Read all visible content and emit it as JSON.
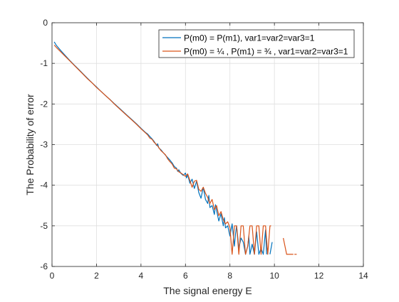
{
  "chart_data": {
    "type": "line",
    "title": "",
    "xlabel": "The signal energy E",
    "ylabel": "The Probability of error",
    "xlim": [
      0,
      14
    ],
    "ylim": [
      -6,
      0
    ],
    "xticks": [
      0,
      2,
      4,
      6,
      8,
      10,
      12,
      14
    ],
    "yticks": [
      0,
      -1,
      -2,
      -3,
      -4,
      -5,
      -6
    ],
    "xtick_labels": [
      "0",
      "2",
      "4",
      "6",
      "8",
      "10",
      "12",
      "14"
    ],
    "ytick_labels": [
      "0",
      "-1",
      "-2",
      "-3",
      "-4",
      "-5",
      "-6"
    ],
    "grid": true,
    "legend_position": "top-right",
    "series": [
      {
        "name": "P(m0) = P(m1), var1=var2=var3=1",
        "color": "#0072BD",
        "points": [
          [
            0.1,
            -0.47
          ],
          [
            0.2,
            -0.56
          ],
          [
            0.4,
            -0.69
          ],
          [
            0.6,
            -0.81
          ],
          [
            0.8,
            -0.93
          ],
          [
            1.0,
            -1.04
          ],
          [
            1.2,
            -1.15
          ],
          [
            1.4,
            -1.26
          ],
          [
            1.6,
            -1.37
          ],
          [
            1.8,
            -1.48
          ],
          [
            2.0,
            -1.58
          ],
          [
            2.2,
            -1.69
          ],
          [
            2.4,
            -1.79
          ],
          [
            2.6,
            -1.89
          ],
          [
            2.8,
            -1.99
          ],
          [
            3.0,
            -2.09
          ],
          [
            3.2,
            -2.19
          ],
          [
            3.4,
            -2.29
          ],
          [
            3.6,
            -2.39
          ],
          [
            3.8,
            -2.49
          ],
          [
            4.0,
            -2.6
          ],
          [
            4.2,
            -2.7
          ],
          [
            4.3,
            -2.74
          ],
          [
            4.4,
            -2.8
          ],
          [
            4.5,
            -2.86
          ],
          [
            4.6,
            -2.93
          ],
          [
            4.7,
            -3.02
          ],
          [
            4.75,
            -2.98
          ],
          [
            4.8,
            -3.08
          ],
          [
            4.9,
            -3.13
          ],
          [
            5.0,
            -3.2
          ],
          [
            5.1,
            -3.26
          ],
          [
            5.2,
            -3.32
          ],
          [
            5.3,
            -3.38
          ],
          [
            5.4,
            -3.45
          ],
          [
            5.5,
            -3.54
          ],
          [
            5.6,
            -3.58
          ],
          [
            5.65,
            -3.66
          ],
          [
            5.7,
            -3.62
          ],
          [
            5.8,
            -3.71
          ],
          [
            5.9,
            -3.76
          ],
          [
            6.0,
            -3.7
          ],
          [
            6.05,
            -3.82
          ],
          [
            6.1,
            -3.74
          ],
          [
            6.2,
            -3.95
          ],
          [
            6.3,
            -3.85
          ],
          [
            6.4,
            -4.08
          ],
          [
            6.5,
            -3.9
          ],
          [
            6.6,
            -4.18
          ],
          [
            6.7,
            -4.32
          ],
          [
            6.8,
            -4.05
          ],
          [
            6.9,
            -4.35
          ],
          [
            7.0,
            -4.45
          ],
          [
            7.05,
            -4.25
          ],
          [
            7.1,
            -4.55
          ],
          [
            7.2,
            -4.5
          ],
          [
            7.3,
            -4.72
          ],
          [
            7.35,
            -4.48
          ],
          [
            7.4,
            -4.62
          ],
          [
            7.5,
            -4.88
          ],
          [
            7.6,
            -4.7
          ],
          [
            7.7,
            -5.0
          ],
          [
            7.75,
            -4.8
          ],
          [
            7.8,
            -5.05
          ],
          [
            7.9,
            -5.0
          ],
          [
            8.0,
            -5.25
          ],
          [
            8.1,
            -4.95
          ],
          [
            8.2,
            -5.5
          ],
          [
            8.25,
            -5.2
          ],
          [
            8.3,
            -5.0
          ],
          [
            8.4,
            -5.55
          ],
          [
            8.5,
            -5.3
          ],
          [
            8.6,
            -5.4
          ],
          [
            8.7,
            -5.7
          ],
          [
            8.8,
            -5.5
          ],
          [
            8.85,
            -5.25
          ],
          [
            8.9,
            -5.7
          ],
          [
            9.0,
            -5.45
          ],
          [
            9.1,
            -5.7
          ],
          [
            9.2,
            -5.15
          ],
          [
            9.3,
            -5.7
          ],
          [
            9.4,
            -5.55
          ],
          [
            9.5,
            -5.7
          ],
          [
            9.6,
            -5.1
          ],
          [
            9.65,
            -5.7
          ]
        ],
        "segments": [
          [
            [
              9.8,
              -5.7
            ],
            [
              9.9,
              -5.4
            ]
          ]
        ]
      },
      {
        "name": "P(m0) = ¼ , P(m1) = ¾ , var1=var2=var3=1",
        "color": "#D95319",
        "points": [
          [
            0.1,
            -0.55
          ],
          [
            0.2,
            -0.61
          ],
          [
            0.4,
            -0.72
          ],
          [
            0.6,
            -0.83
          ],
          [
            0.8,
            -0.94
          ],
          [
            1.0,
            -1.05
          ],
          [
            1.2,
            -1.16
          ],
          [
            1.4,
            -1.27
          ],
          [
            1.6,
            -1.38
          ],
          [
            1.8,
            -1.48
          ],
          [
            2.0,
            -1.59
          ],
          [
            2.2,
            -1.69
          ],
          [
            2.4,
            -1.79
          ],
          [
            2.6,
            -1.89
          ],
          [
            2.8,
            -2.0
          ],
          [
            3.0,
            -2.1
          ],
          [
            3.2,
            -2.2
          ],
          [
            3.4,
            -2.3
          ],
          [
            3.6,
            -2.4
          ],
          [
            3.8,
            -2.5
          ],
          [
            4.0,
            -2.61
          ],
          [
            4.2,
            -2.71
          ],
          [
            4.3,
            -2.76
          ],
          [
            4.4,
            -2.84
          ],
          [
            4.5,
            -2.87
          ],
          [
            4.6,
            -2.95
          ],
          [
            4.7,
            -3.0
          ],
          [
            4.8,
            -3.07
          ],
          [
            4.9,
            -3.15
          ],
          [
            5.0,
            -3.2
          ],
          [
            5.1,
            -3.25
          ],
          [
            5.2,
            -3.35
          ],
          [
            5.3,
            -3.42
          ],
          [
            5.4,
            -3.48
          ],
          [
            5.5,
            -3.58
          ],
          [
            5.6,
            -3.6
          ],
          [
            5.7,
            -3.67
          ],
          [
            5.8,
            -3.7
          ],
          [
            5.9,
            -3.74
          ],
          [
            6.0,
            -3.78
          ],
          [
            6.1,
            -3.72
          ],
          [
            6.2,
            -3.88
          ],
          [
            6.3,
            -4.05
          ],
          [
            6.4,
            -3.9
          ],
          [
            6.5,
            -3.88
          ],
          [
            6.6,
            -4.1
          ],
          [
            6.7,
            -4.15
          ],
          [
            6.8,
            -4.05
          ],
          [
            6.9,
            -4.2
          ],
          [
            7.0,
            -4.3
          ],
          [
            7.1,
            -4.45
          ],
          [
            7.2,
            -4.35
          ],
          [
            7.3,
            -4.6
          ],
          [
            7.4,
            -4.5
          ],
          [
            7.5,
            -4.75
          ],
          [
            7.6,
            -4.65
          ],
          [
            7.7,
            -4.85
          ],
          [
            7.8,
            -4.95
          ],
          [
            7.9,
            -4.9
          ],
          [
            8.0,
            -5.05
          ],
          [
            8.1,
            -5.7
          ],
          [
            8.2,
            -5.0
          ],
          [
            8.3,
            -5.0
          ],
          [
            8.4,
            -5.7
          ],
          [
            8.5,
            -5.0
          ],
          [
            8.6,
            -5.0
          ],
          [
            8.7,
            -5.7
          ],
          [
            8.8,
            -5.5
          ],
          [
            8.9,
            -5.0
          ],
          [
            9.0,
            -5.0
          ],
          [
            9.1,
            -5.7
          ],
          [
            9.2,
            -5.0
          ],
          [
            9.3,
            -5.0
          ],
          [
            9.4,
            -5.7
          ],
          [
            9.5,
            -5.0
          ],
          [
            9.6,
            -5.0
          ],
          [
            9.7,
            -5.7
          ],
          [
            9.8,
            -5.0
          ],
          [
            9.85,
            -5.0
          ]
        ],
        "segments": [
          [
            [
              10.4,
              -5.3
            ],
            [
              10.55,
              -5.7
            ],
            [
              10.85,
              -5.7
            ]
          ],
          [
            [
              10.9,
              -5.7
            ],
            [
              11.0,
              -5.7
            ]
          ]
        ]
      }
    ]
  }
}
